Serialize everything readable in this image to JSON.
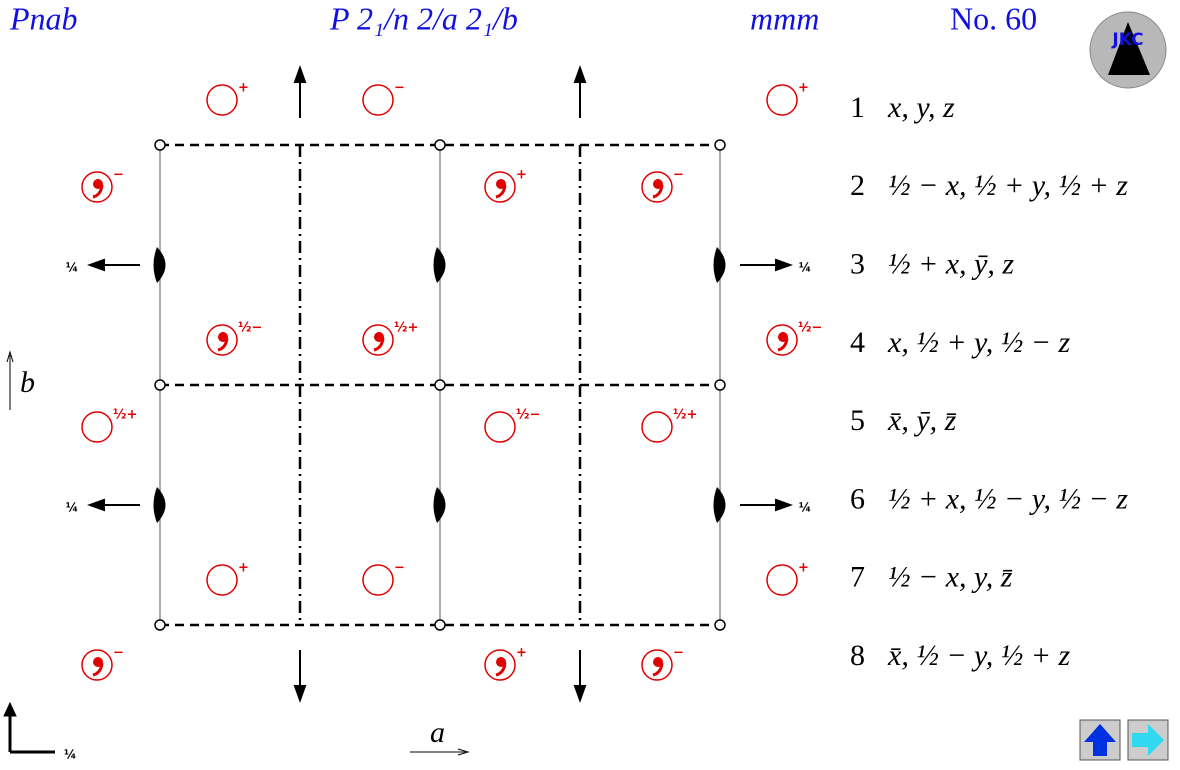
{
  "header": {
    "short_symbol": "Pnab",
    "full_symbol": "P 2₁/n 2/a 2₁/b",
    "point_group": "mmm",
    "number": "No. 60"
  },
  "logo": "JKC",
  "diagram": {
    "symbols": [
      "+",
      "−",
      "+",
      "−",
      "+",
      "−",
      "½−",
      "½+",
      "½−",
      "½+",
      "½−",
      "½+",
      "+",
      "−",
      "+",
      "−",
      "+",
      "−"
    ],
    "screw_heights": [
      "¼",
      "¼",
      "¼",
      "¼"
    ],
    "axis_b": "b",
    "axis_a": "a",
    "origin_height": "¼"
  },
  "positions": [
    {
      "number": "1",
      "coords": "x, y, z"
    },
    {
      "number": "2",
      "coords": "½ − x, ½ + y, ½ + z"
    },
    {
      "number": "3",
      "coords": "½ + x, ȳ, z"
    },
    {
      "number": "4",
      "coords": "x, ½ + y, ½ − z"
    },
    {
      "number": "5",
      "coords": "x̄, ȳ, z̄"
    },
    {
      "number": "6",
      "coords": "½ + x, ½ − y, ½ − z"
    },
    {
      "number": "7",
      "coords": "½ − x, y, z̄"
    },
    {
      "number": "8",
      "coords": "x̄, ½ − y, ½ + z"
    }
  ]
}
